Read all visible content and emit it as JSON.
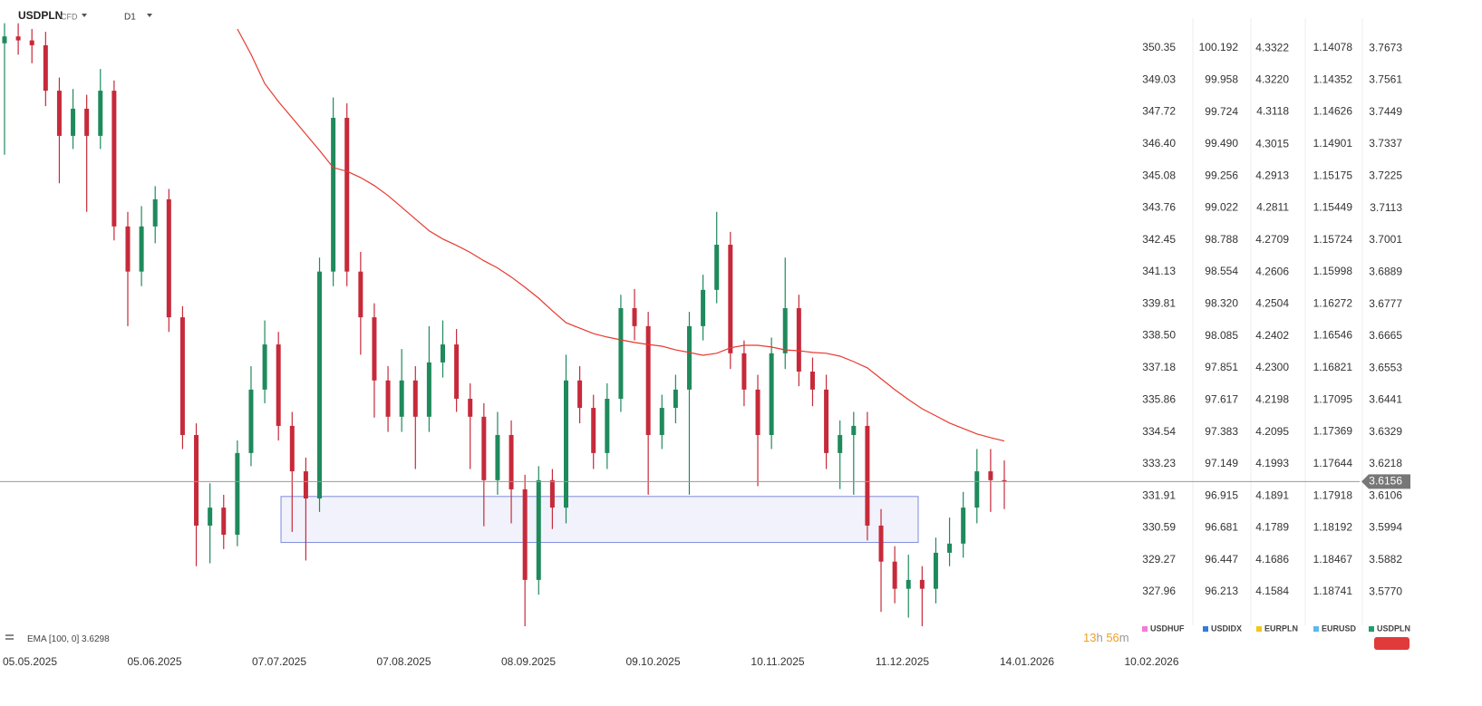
{
  "chart_data": {
    "type": "candlestick",
    "symbol": "USDPLN",
    "instrument_type": "CFD",
    "interval": "D1",
    "colors": {
      "up": "#1f8a5c",
      "down": "#c62a3a"
    },
    "open": [
      3.769,
      3.7714,
      3.77,
      3.7683,
      3.7524,
      3.7366,
      3.7461,
      3.7366,
      3.7524,
      3.7049,
      3.6891,
      3.7049,
      3.7144,
      3.6731,
      3.6319,
      3.6002,
      3.6065,
      3.597,
      3.6256,
      3.6478,
      3.6636,
      3.6351,
      3.6192,
      3.6097,
      3.6891,
      3.7429,
      3.6891,
      3.6731,
      3.651,
      3.6383,
      3.651,
      3.6383,
      3.6573,
      3.6636,
      3.6446,
      3.6383,
      3.6161,
      3.6319,
      3.6129,
      3.5812,
      3.6161,
      3.6065,
      3.651,
      3.6414,
      3.6256,
      3.6446,
      3.6763,
      3.67,
      3.6319,
      3.6414,
      3.6478,
      3.67,
      3.6827,
      3.6985,
      3.6605,
      3.6478,
      3.6319,
      3.6605,
      3.6763,
      3.6541,
      3.6478,
      3.6256,
      3.6319,
      3.6351,
      3.6002,
      3.5876,
      3.5781,
      3.5812,
      3.5781,
      3.5907,
      3.5939,
      3.6065,
      3.6192,
      3.6161
    ],
    "high": [
      3.776,
      3.776,
      3.774,
      3.773,
      3.757,
      3.753,
      3.751,
      3.76,
      3.756,
      3.71,
      3.712,
      3.719,
      3.718,
      3.677,
      3.636,
      3.615,
      3.611,
      3.63,
      3.656,
      3.672,
      3.668,
      3.64,
      3.624,
      3.694,
      3.75,
      3.748,
      3.696,
      3.678,
      3.656,
      3.662,
      3.656,
      3.67,
      3.672,
      3.669,
      3.65,
      3.643,
      3.64,
      3.637,
      3.618,
      3.621,
      3.62,
      3.66,
      3.656,
      3.646,
      3.65,
      3.681,
      3.683,
      3.675,
      3.646,
      3.653,
      3.675,
      3.688,
      3.71,
      3.703,
      3.665,
      3.653,
      3.666,
      3.694,
      3.681,
      3.659,
      3.653,
      3.637,
      3.64,
      3.64,
      3.606,
      3.593,
      3.59,
      3.586,
      3.596,
      3.603,
      3.612,
      3.627,
      3.627,
      3.623
    ],
    "low": [
      3.73,
      3.765,
      3.762,
      3.747,
      3.72,
      3.732,
      3.71,
      3.732,
      3.7,
      3.67,
      3.684,
      3.699,
      3.668,
      3.627,
      3.586,
      3.587,
      3.592,
      3.593,
      3.621,
      3.643,
      3.63,
      3.598,
      3.588,
      3.605,
      3.684,
      3.684,
      3.66,
      3.638,
      3.633,
      3.633,
      3.62,
      3.633,
      3.652,
      3.64,
      3.62,
      3.6,
      3.611,
      3.601,
      3.565,
      3.576,
      3.599,
      3.601,
      3.636,
      3.62,
      3.62,
      3.64,
      3.665,
      3.611,
      3.627,
      3.636,
      3.611,
      3.665,
      3.678,
      3.655,
      3.642,
      3.614,
      3.627,
      3.655,
      3.649,
      3.642,
      3.62,
      3.613,
      3.611,
      3.595,
      3.57,
      3.573,
      3.568,
      3.565,
      3.573,
      3.586,
      3.589,
      3.601,
      3.605,
      3.606
    ],
    "close": [
      3.7714,
      3.77,
      3.7683,
      3.7524,
      3.7366,
      3.7461,
      3.7366,
      3.7524,
      3.7049,
      3.6891,
      3.7049,
      3.7144,
      3.6731,
      3.6319,
      3.6002,
      3.6065,
      3.597,
      3.6256,
      3.6478,
      3.6636,
      3.6351,
      3.6192,
      3.6097,
      3.6891,
      3.7429,
      3.6891,
      3.6731,
      3.651,
      3.6383,
      3.651,
      3.6383,
      3.6573,
      3.6636,
      3.6446,
      3.6383,
      3.6161,
      3.6319,
      3.6129,
      3.5812,
      3.6161,
      3.6065,
      3.651,
      3.6414,
      3.6256,
      3.6446,
      3.6763,
      3.67,
      3.6319,
      3.6414,
      3.6478,
      3.67,
      3.6827,
      3.6985,
      3.6605,
      3.6478,
      3.6319,
      3.6605,
      3.6763,
      3.6541,
      3.6478,
      3.6256,
      3.6319,
      3.6351,
      3.6002,
      3.5876,
      3.5781,
      3.5812,
      3.5781,
      3.5907,
      3.5939,
      3.6065,
      3.6192,
      3.6161,
      3.6156
    ],
    "indicator": {
      "name": "EMA",
      "params": "[100, 0]",
      "value": 3.6298,
      "color": "#e8392f",
      "values": [
        null,
        null,
        null,
        null,
        null,
        null,
        null,
        null,
        null,
        null,
        null,
        null,
        null,
        null,
        null,
        null,
        null,
        3.774,
        3.7651,
        3.7549,
        3.7486,
        3.7429,
        3.7372,
        3.7315,
        3.7255,
        3.7242,
        3.722,
        3.7192,
        3.7157,
        3.7116,
        3.7075,
        3.7034,
        3.7005,
        3.6983,
        3.6958,
        3.6929,
        3.6904,
        3.6872,
        3.6836,
        3.6798,
        3.6754,
        3.6712,
        3.6693,
        3.6674,
        3.6662,
        3.6652,
        3.6643,
        3.6636,
        3.663,
        3.6617,
        3.6608,
        3.6598,
        3.6605,
        3.6624,
        3.6633,
        3.6633,
        3.6627,
        3.6617,
        3.6614,
        3.6608,
        3.6605,
        3.6595,
        3.6576,
        3.6554,
        3.6516,
        3.6478,
        3.6443,
        3.6411,
        3.6386,
        3.6361,
        3.6342,
        3.6323,
        3.631,
        3.6298
      ]
    },
    "last_price": 3.6156,
    "zone": {
      "high": 3.6104,
      "low": 3.5943,
      "color": "#4a5bd0"
    },
    "xticks": [
      "05.05.2025",
      "05.06.2025",
      "07.07.2025",
      "07.08.2025",
      "08.09.2025",
      "09.10.2025",
      "10.11.2025",
      "11.12.2025",
      "14.01.2026",
      "10.02.2026"
    ],
    "price_scales": [
      {
        "name": "USDHUF",
        "color": "#f27ad8",
        "ylim": [
          326.58,
          351.58
        ],
        "yticks": [
          350.35,
          349.03,
          347.72,
          {
            "value": 346.4,
            "label": "346.40"
          },
          345.08,
          343.76,
          342.45,
          341.13,
          339.81,
          {
            "value": 338.5,
            "label": "338.50"
          },
          337.18,
          335.86,
          334.54,
          333.23,
          331.91,
          330.59,
          329.27,
          327.96
        ]
      },
      {
        "name": "USDIDX",
        "color": "#2f7de1",
        "ylim": [
          95.968,
          100.411
        ],
        "yticks": [
          100.192,
          99.958,
          99.724,
          {
            "value": 99.49,
            "label": "99.490"
          },
          99.256,
          99.022,
          98.788,
          98.554,
          {
            "value": 98.32,
            "label": "98.320"
          },
          98.085,
          97.851,
          97.617,
          97.383,
          97.149,
          96.915,
          96.681,
          96.447,
          96.213
        ]
      },
      {
        "name": "EURPLN",
        "color": "#f5c518",
        "ylim": [
          4.1477,
          4.3418
        ],
        "yticks": [
          4.3322,
          {
            "value": 4.322,
            "label": "4.3220"
          },
          4.3118,
          4.3015,
          4.2913,
          4.2811,
          4.2709,
          4.2606,
          4.2504,
          4.2402,
          {
            "value": 4.23,
            "label": "4.2300"
          },
          4.2198,
          4.2095,
          4.1993,
          4.1891,
          4.1789,
          4.1686,
          4.1584
        ]
      },
      {
        "name": "EURUSD",
        "color": "#5bb8ee",
        "ylim": [
          1.19028,
          1.13822
        ],
        "yticks": [
          1.14078,
          1.14352,
          1.14626,
          1.14901,
          1.15175,
          1.15449,
          1.15724,
          1.15998,
          1.16272,
          1.16546,
          1.16821,
          1.17095,
          1.17369,
          1.17644,
          1.17918,
          1.18192,
          1.18467,
          1.18741
        ]
      },
      {
        "name": "USDPLN",
        "color": "#1f9e6a",
        "ylim": [
          3.5653,
          3.7778
        ],
        "yticks": [
          3.7673,
          3.7561,
          3.7449,
          3.7337,
          3.7225,
          3.7113,
          3.7001,
          3.6889,
          3.6777,
          3.6665,
          3.6553,
          3.6441,
          3.6329,
          3.6218,
          3.6106,
          3.5994,
          3.5882,
          {
            "value": 3.577,
            "label": "3.5770"
          }
        ]
      }
    ],
    "countdown": {
      "hours": 13,
      "hours_unit": "h",
      "minutes": 56,
      "minutes_unit": "m"
    }
  }
}
